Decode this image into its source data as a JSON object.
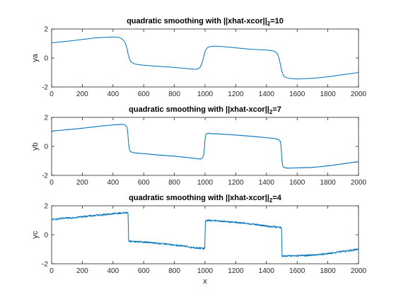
{
  "chart_data": [
    {
      "type": "line",
      "title": "quadratic smoothing with ||xhat-xcor||",
      "title_subscript": "2",
      "title_suffix": "=10",
      "xlabel": "",
      "ylabel": "ya",
      "xlim": [
        0,
        2000
      ],
      "ylim": [
        -2,
        2
      ],
      "xticks": [
        0,
        200,
        400,
        600,
        800,
        1000,
        1200,
        1400,
        1600,
        1800,
        2000
      ],
      "yticks": [
        -2,
        0,
        2
      ],
      "color": "#0072BD",
      "noise": 0.0,
      "series": [
        {
          "x": [
            0,
            100,
            200,
            300,
            400,
            440,
            460,
            470,
            480,
            490,
            500,
            510,
            520,
            540,
            560,
            600,
            700,
            800,
            900,
            940,
            960,
            970,
            980,
            990,
            1000,
            1010,
            1020,
            1040,
            1060,
            1100,
            1200,
            1300,
            1400,
            1440,
            1460,
            1470,
            1480,
            1490,
            1500,
            1510,
            1520,
            1540,
            1560,
            1600,
            1700,
            1800,
            1900,
            2000
          ],
          "y": [
            1.05,
            1.15,
            1.28,
            1.4,
            1.45,
            1.42,
            1.3,
            1.2,
            1.05,
            0.7,
            0.2,
            -0.15,
            -0.3,
            -0.4,
            -0.45,
            -0.5,
            -0.58,
            -0.65,
            -0.75,
            -0.78,
            -0.72,
            -0.6,
            -0.35,
            0.05,
            0.45,
            0.65,
            0.75,
            0.8,
            0.82,
            0.8,
            0.7,
            0.6,
            0.55,
            0.5,
            0.42,
            0.3,
            0.05,
            -0.4,
            -0.9,
            -1.2,
            -1.32,
            -1.38,
            -1.42,
            -1.45,
            -1.4,
            -1.3,
            -1.15,
            -1.0
          ]
        }
      ]
    },
    {
      "type": "line",
      "title": "quadratic smoothing with ||xhat-xcor||",
      "title_subscript": "2",
      "title_suffix": "=7",
      "xlabel": "",
      "ylabel": "yb",
      "xlim": [
        0,
        2000
      ],
      "ylim": [
        -2,
        2
      ],
      "xticks": [
        0,
        200,
        400,
        600,
        800,
        1000,
        1200,
        1400,
        1600,
        1800,
        2000
      ],
      "yticks": [
        -2,
        0,
        2
      ],
      "color": "#0072BD",
      "noise": 0.015,
      "series": [
        {
          "x": [
            0,
            100,
            200,
            300,
            400,
            450,
            470,
            480,
            490,
            495,
            500,
            505,
            510,
            520,
            540,
            600,
            700,
            800,
            900,
            950,
            970,
            980,
            990,
            995,
            1000,
            1005,
            1010,
            1020,
            1040,
            1100,
            1200,
            1300,
            1400,
            1450,
            1470,
            1480,
            1490,
            1495,
            1500,
            1505,
            1510,
            1520,
            1540,
            1600,
            1700,
            1800,
            1900,
            2000
          ],
          "y": [
            1.05,
            1.15,
            1.25,
            1.38,
            1.48,
            1.52,
            1.5,
            1.45,
            1.35,
            1.1,
            0.4,
            -0.1,
            -0.3,
            -0.4,
            -0.45,
            -0.5,
            -0.6,
            -0.68,
            -0.78,
            -0.85,
            -0.88,
            -0.82,
            -0.65,
            -0.2,
            0.5,
            0.8,
            0.88,
            0.9,
            0.88,
            0.85,
            0.78,
            0.7,
            0.6,
            0.55,
            0.5,
            0.45,
            0.35,
            0.0,
            -0.8,
            -1.3,
            -1.42,
            -1.48,
            -1.5,
            -1.48,
            -1.45,
            -1.35,
            -1.2,
            -1.05
          ]
        }
      ]
    },
    {
      "type": "line",
      "title": "quadratic smoothing with ||xhat-xcor||",
      "title_subscript": "2",
      "title_suffix": "=4",
      "xlabel": "x",
      "ylabel": "yc",
      "xlim": [
        0,
        2000
      ],
      "ylim": [
        -2,
        2
      ],
      "xticks": [
        0,
        200,
        400,
        600,
        800,
        1000,
        1200,
        1400,
        1600,
        1800,
        2000
      ],
      "yticks": [
        -2,
        0,
        2
      ],
      "color": "#0072BD",
      "noise": 0.06,
      "series": [
        {
          "x": [
            0,
            100,
            200,
            300,
            400,
            450,
            490,
            498,
            502,
            510,
            600,
            700,
            800,
            900,
            950,
            990,
            998,
            1002,
            1010,
            1100,
            1200,
            1300,
            1400,
            1450,
            1490,
            1498,
            1502,
            1510,
            1600,
            1700,
            1800,
            1900,
            2000
          ],
          "y": [
            1.05,
            1.15,
            1.25,
            1.35,
            1.45,
            1.5,
            1.52,
            1.5,
            -0.4,
            -0.45,
            -0.5,
            -0.6,
            -0.7,
            -0.85,
            -0.92,
            -0.95,
            -0.9,
            0.95,
            1.0,
            0.95,
            0.85,
            0.75,
            0.6,
            0.55,
            0.5,
            0.45,
            -1.45,
            -1.48,
            -1.45,
            -1.4,
            -1.3,
            -1.15,
            -1.0
          ]
        }
      ]
    }
  ]
}
